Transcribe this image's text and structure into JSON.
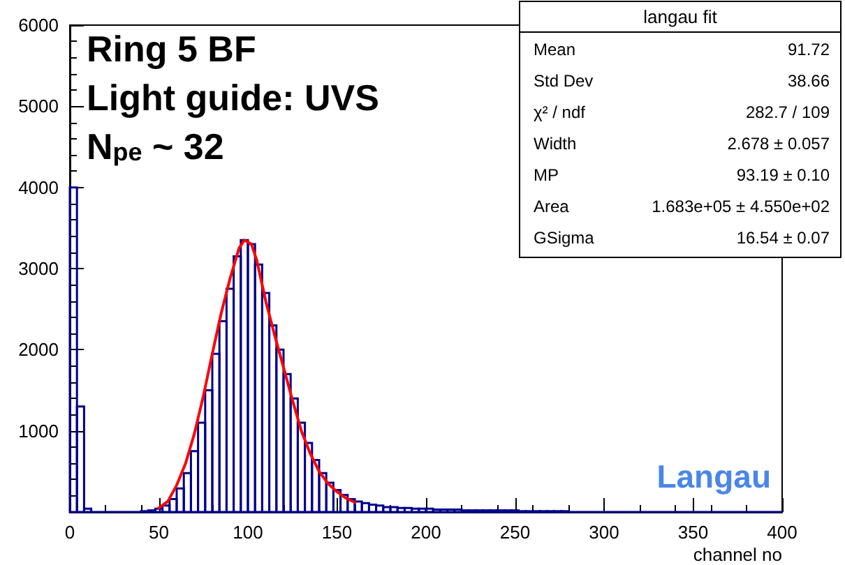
{
  "chart_data": {
    "type": "histogram",
    "xlabel": "channel no",
    "xlim": [
      0,
      400
    ],
    "xticks": [
      0,
      50,
      100,
      150,
      200,
      250,
      300,
      350,
      400
    ],
    "ylim": [
      0,
      6000
    ],
    "yticks": [
      1000,
      2000,
      3000,
      4000,
      5000,
      6000
    ],
    "grid": false,
    "series": [
      {
        "type": "histogram",
        "color": "#00008b",
        "bins": [
          0,
          4,
          8,
          12,
          16,
          20,
          24,
          28,
          32,
          36,
          40,
          44,
          48,
          52,
          56,
          60,
          64,
          68,
          72,
          76,
          80,
          84,
          88,
          92,
          96,
          100,
          104,
          108,
          112,
          116,
          120,
          124,
          128,
          132,
          136,
          140,
          144,
          148,
          152,
          156,
          160,
          164,
          168,
          172,
          176,
          180,
          184,
          188,
          192,
          196,
          200,
          204,
          208,
          212,
          216,
          220,
          224,
          228,
          232,
          236,
          240,
          244,
          248,
          252,
          256,
          260,
          264,
          268,
          272,
          276,
          280,
          284,
          288,
          292,
          296,
          300,
          304,
          308,
          312,
          316,
          320,
          324,
          328,
          332,
          336,
          340,
          344,
          348,
          352,
          356,
          360,
          364,
          368,
          372,
          376,
          380,
          384,
          388,
          392,
          396,
          400
        ],
        "values": [
          4000,
          1300,
          40,
          0,
          0,
          0,
          0,
          0,
          0,
          0,
          10,
          20,
          40,
          80,
          160,
          290,
          480,
          750,
          1100,
          1500,
          1950,
          2350,
          2750,
          3150,
          3350,
          3300,
          3050,
          2700,
          2300,
          2000,
          1700,
          1400,
          1100,
          850,
          640,
          480,
          360,
          270,
          210,
          160,
          130,
          110,
          90,
          80,
          60,
          60,
          50,
          50,
          40,
          40,
          40,
          30,
          30,
          30,
          30,
          20,
          20,
          20,
          20,
          20,
          20,
          20,
          20,
          10,
          10,
          10,
          10,
          10,
          10,
          10,
          0,
          0,
          0,
          0,
          0,
          0,
          0,
          0,
          0,
          0,
          0,
          0,
          0,
          0,
          0,
          0,
          0,
          0,
          0,
          0,
          0,
          0,
          0,
          0,
          0,
          0,
          0,
          0,
          0,
          0
        ]
      },
      {
        "type": "line",
        "color": "#ff0000",
        "marker": "none",
        "x": [
          50,
          55,
          60,
          65,
          70,
          75,
          80,
          85,
          90,
          95,
          98,
          102,
          105,
          110,
          115,
          120,
          125,
          130,
          135,
          140,
          145,
          150,
          155,
          160
        ],
        "values": [
          50,
          130,
          330,
          600,
          970,
          1430,
          1950,
          2450,
          2880,
          3250,
          3350,
          3300,
          3100,
          2600,
          2180,
          1780,
          1380,
          1000,
          720,
          500,
          350,
          250,
          170,
          120
        ]
      }
    ],
    "annotations": [
      "Ring 5 BF",
      "Light guide: UVS",
      "N$_{pe}$ ~ 32",
      "Langau",
      "langau fit",
      "Mean",
      "91.72",
      "Std Dev",
      "38.66",
      "χ² / ndf",
      "282.7 / 109",
      "Width",
      "2.678 ± 0.057",
      "MP",
      "93.19 ± 0.10",
      "Area",
      "1.683e+05 ± 4.550e+02",
      "GSigma",
      "16.54 ± 0.07"
    ]
  }
}
